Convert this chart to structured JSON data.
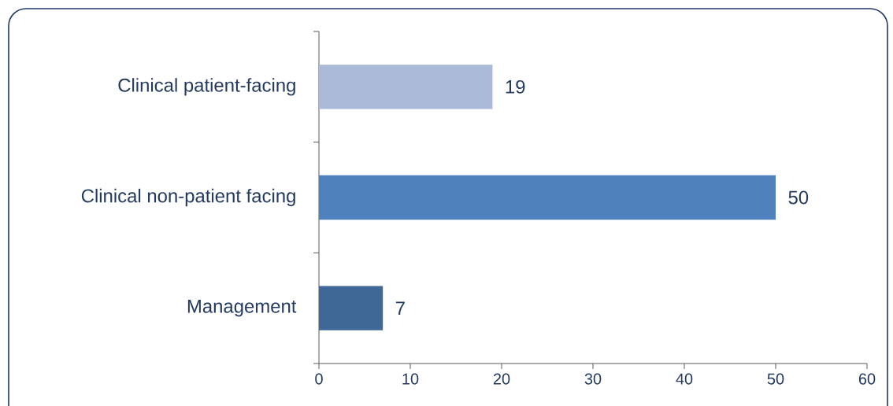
{
  "chart_data": {
    "type": "bar",
    "orientation": "horizontal",
    "categories": [
      "Clinical patient-facing",
      "Clinical non-patient facing",
      "Management"
    ],
    "values": [
      19,
      50,
      7
    ],
    "colors": [
      "#abbad9",
      "#4f81bd",
      "#3f6897"
    ],
    "xlim": [
      0,
      60
    ],
    "xticks": [
      0,
      10,
      20,
      30,
      40,
      50,
      60
    ],
    "data_labels": true,
    "grid": false
  }
}
